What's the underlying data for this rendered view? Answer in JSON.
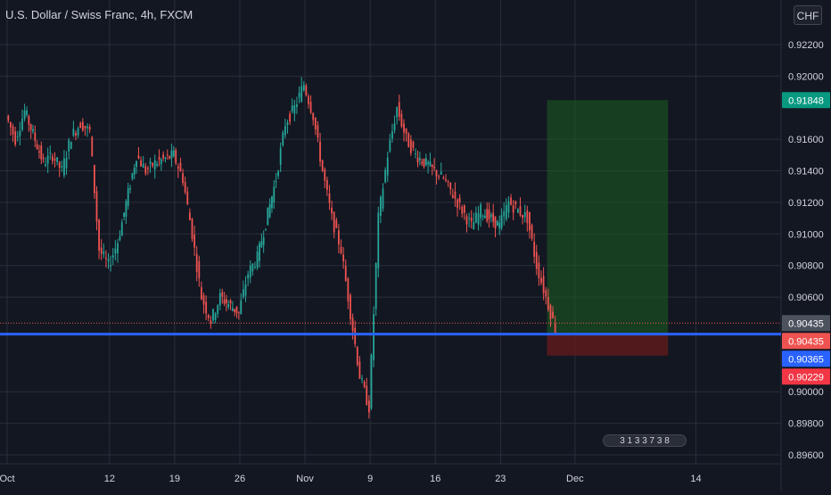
{
  "header": {
    "title": "U.S. Dollar / Swiss Franc, 4h, FXCM",
    "currency_button": "CHF",
    "currency_button_icon": "dropdown-menu-icon"
  },
  "bottom_control": {
    "label": "3 1 3 3 7 3 8",
    "icon": "playback-controls-icon"
  },
  "colors": {
    "background": "#131722",
    "grid": "#2a2e39",
    "up_candle": "#26a69a",
    "down_candle": "#ef5350",
    "support_line": "#2962ff",
    "profit_zone": "#1b5e20",
    "loss_zone": "#6d1b1b",
    "axis_text": "#d1d4dc"
  },
  "chart_data": {
    "type": "candlestick",
    "title": "U.S. Dollar / Swiss Franc, 4h, FXCM",
    "xlabel": "",
    "ylabel": "",
    "ylim": [
      0.896,
      0.923
    ],
    "grid": true,
    "x_ticks": [
      "Oct",
      "12",
      "19",
      "26",
      "Nov",
      "9",
      "16",
      "23",
      "Dec",
      "14"
    ],
    "y_ticks": [
      "0.92200",
      "0.92000",
      "0.91600",
      "0.91400",
      "0.91200",
      "0.91000",
      "0.90800",
      "0.90600",
      "0.90000",
      "0.89800",
      "0.89600"
    ],
    "price_labels": [
      {
        "label": "0.91848",
        "value": 0.91848,
        "color": "#089981"
      },
      {
        "label": "0.90435",
        "value": 0.90435,
        "color": "#4c525e"
      },
      {
        "label": "0.90435",
        "value": 0.90435,
        "color": "#ef5350"
      },
      {
        "label": "0.90365",
        "value": 0.90365,
        "color": "#2962ff"
      },
      {
        "label": "0.90229",
        "value": 0.90229,
        "color": "#f23645"
      }
    ],
    "horizontal_lines": [
      {
        "name": "support",
        "value": 0.90365,
        "color": "#2962ff"
      },
      {
        "name": "current-price",
        "value": 0.90435,
        "color": "#ef5350",
        "style": "dotted"
      }
    ],
    "position": {
      "type": "long",
      "entry": 0.90365,
      "take_profit": 0.91848,
      "stop_loss": 0.90229,
      "start_date": "2020-11-28",
      "end_date": "2020-12-11"
    },
    "series": [
      {
        "name": "close_path",
        "points": [
          [
            "2020-10-01",
            0.9175
          ],
          [
            "2020-10-02",
            0.916
          ],
          [
            "2020-10-03",
            0.9178
          ],
          [
            "2020-10-05",
            0.9145
          ],
          [
            "2020-10-06",
            0.915
          ],
          [
            "2020-10-07",
            0.914
          ],
          [
            "2020-10-08",
            0.9162
          ],
          [
            "2020-10-09",
            0.917
          ],
          [
            "2020-10-10",
            0.9165
          ],
          [
            "2020-10-11",
            0.909
          ],
          [
            "2020-10-12",
            0.908
          ],
          [
            "2020-10-13",
            0.9095
          ],
          [
            "2020-10-15",
            0.915
          ],
          [
            "2020-10-16",
            0.914
          ],
          [
            "2020-10-17",
            0.9145
          ],
          [
            "2020-10-19",
            0.915
          ],
          [
            "2020-10-20",
            0.9135
          ],
          [
            "2020-10-21",
            0.91
          ],
          [
            "2020-10-22",
            0.906
          ],
          [
            "2020-10-23",
            0.9045
          ],
          [
            "2020-10-24",
            0.906
          ],
          [
            "2020-10-26",
            0.905
          ],
          [
            "2020-10-27",
            0.9075
          ],
          [
            "2020-10-28",
            0.9085
          ],
          [
            "2020-10-30",
            0.9135
          ],
          [
            "2020-10-31",
            0.917
          ],
          [
            "2020-11-01",
            0.918
          ],
          [
            "2020-11-02",
            0.9195
          ],
          [
            "2020-11-03",
            0.9175
          ],
          [
            "2020-11-04",
            0.914
          ],
          [
            "2020-11-05",
            0.911
          ],
          [
            "2020-11-06",
            0.909
          ],
          [
            "2020-11-07",
            0.905
          ],
          [
            "2020-11-08",
            0.901
          ],
          [
            "2020-11-09",
            0.899
          ],
          [
            "2020-11-10",
            0.911
          ],
          [
            "2020-11-11",
            0.915
          ],
          [
            "2020-11-12",
            0.918
          ],
          [
            "2020-11-13",
            0.916
          ],
          [
            "2020-11-14",
            0.915
          ],
          [
            "2020-11-16",
            0.914
          ],
          [
            "2020-11-17",
            0.9135
          ],
          [
            "2020-11-18",
            0.9125
          ],
          [
            "2020-11-19",
            0.9115
          ],
          [
            "2020-11-20",
            0.9105
          ],
          [
            "2020-11-21",
            0.9115
          ],
          [
            "2020-11-23",
            0.9105
          ],
          [
            "2020-11-24",
            0.912
          ],
          [
            "2020-11-25",
            0.9115
          ],
          [
            "2020-11-26",
            0.911
          ],
          [
            "2020-11-27",
            0.908
          ],
          [
            "2020-11-28",
            0.906
          ],
          [
            "2020-11-29",
            0.904
          ]
        ]
      }
    ]
  }
}
